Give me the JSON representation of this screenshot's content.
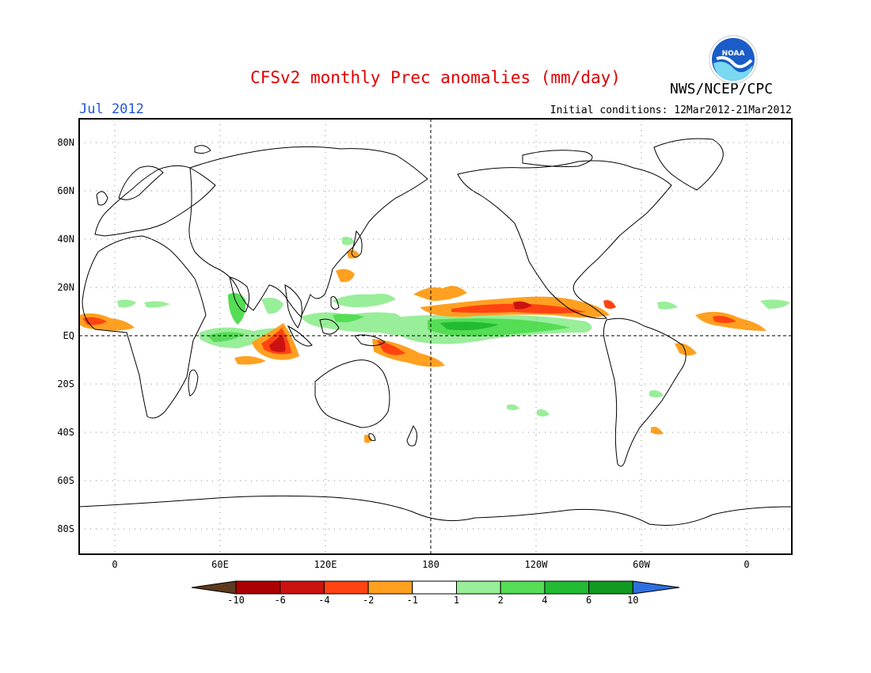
{
  "header": {
    "title": "CFSv2 monthly Prec anomalies (mm/day)",
    "month": "Jul 2012",
    "initial_conditions": "Initial conditions: 12Mar2012-21Mar2012",
    "agency": "NWS/NCEP/CPC",
    "logo_text": "NOAA"
  },
  "axes": {
    "lat_labels": [
      "80N",
      "60N",
      "40N",
      "20N",
      "EQ",
      "20S",
      "40S",
      "60S",
      "80S"
    ],
    "lon_labels": [
      "0",
      "60E",
      "120E",
      "180",
      "120W",
      "60W",
      "0"
    ]
  },
  "colorbar": {
    "labels": [
      "-10",
      "-6",
      "-4",
      "-2",
      "-1",
      "1",
      "2",
      "4",
      "6",
      "10"
    ],
    "colors": [
      "#5c3a1e",
      "#aa0000",
      "#cc1111",
      "#ff4411",
      "#ffa020",
      "#ffffff",
      "#99ee99",
      "#55dd55",
      "#22bb33",
      "#119922",
      "#2e6fe0"
    ]
  },
  "colors": {
    "title": "#e00000",
    "month": "#2255dd",
    "land_outline": "#000000",
    "grid": "#888888"
  }
}
